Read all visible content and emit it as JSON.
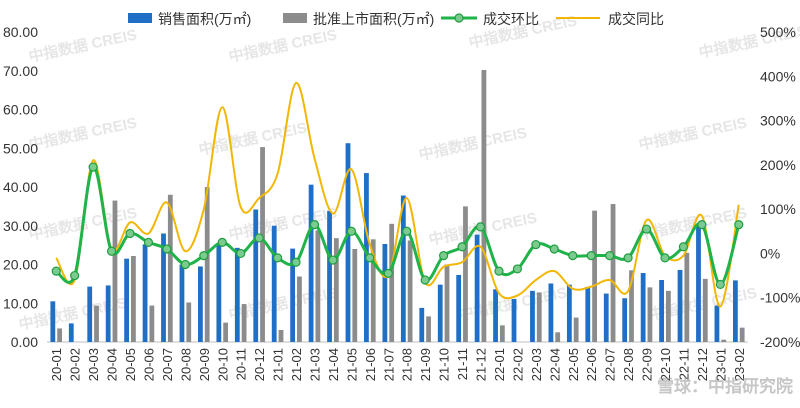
{
  "chart_data": {
    "type": "bar",
    "categories": [
      "20-01",
      "20-02",
      "20-03",
      "20-04",
      "20-05",
      "20-06",
      "20-07",
      "20-08",
      "20-09",
      "20-10",
      "20-11",
      "20-12",
      "21-01",
      "21-02",
      "21-03",
      "21-04",
      "21-05",
      "21-06",
      "21-07",
      "21-08",
      "21-09",
      "21-10",
      "21-11",
      "21-12",
      "22-01",
      "22-02",
      "22-03",
      "22-04",
      "22-05",
      "22-06",
      "22-07",
      "22-08",
      "22-09",
      "22-10",
      "22-11",
      "22-12",
      "23-01",
      "23-02"
    ],
    "left_axis": {
      "min": 0,
      "max": 80,
      "step": 10,
      "tick_labels": [
        "0.00",
        "10.00",
        "20.00",
        "30.00",
        "40.00",
        "50.00",
        "60.00",
        "70.00",
        "80.00"
      ]
    },
    "right_axis": {
      "min": -200,
      "max": 500,
      "step": 100,
      "tick_labels": [
        "-200%",
        "-100%",
        "0%",
        "100%",
        "200%",
        "300%",
        "400%",
        "500%"
      ]
    },
    "series": [
      {
        "name": "销售面积(万㎡)",
        "kind": "bar",
        "axis": "left",
        "color": "#1f6fc6",
        "values": [
          10.5,
          4.8,
          14.3,
          14.6,
          21.5,
          25.2,
          28.0,
          20.0,
          19.5,
          25.0,
          24.3,
          34.2,
          30.0,
          24.1,
          40.6,
          33.8,
          51.3,
          43.6,
          25.3,
          37.8,
          8.8,
          14.8,
          17.3,
          27.7,
          13.6,
          11.1,
          13.2,
          15.1,
          14.8,
          14.2,
          12.5,
          11.3,
          17.8,
          16.0,
          18.6,
          30.5,
          9.4,
          15.9
        ]
      },
      {
        "name": "批准上市面积(万㎡)",
        "kind": "bar",
        "axis": "left",
        "color": "#8c8c8c",
        "values": [
          3.5,
          0,
          9.4,
          36.5,
          22.2,
          9.4,
          38.0,
          10.2,
          40.0,
          5.0,
          9.8,
          50.3,
          3.1,
          16.9,
          28.8,
          26.8,
          24.0,
          26.5,
          30.5,
          26.2,
          6.6,
          20.0,
          35.0,
          70.2,
          4.3,
          0,
          12.8,
          2.5,
          6.3,
          33.9,
          35.6,
          18.5,
          14.1,
          13.2,
          23.0,
          16.3,
          0.6,
          3.7
        ]
      },
      {
        "name": "成交环比",
        "kind": "line",
        "axis": "right",
        "color": "#1fb34a",
        "values": [
          -40,
          -50,
          195,
          5,
          45,
          25,
          10,
          -25,
          -5,
          25,
          0,
          35,
          -10,
          -20,
          65,
          -15,
          50,
          -10,
          -45,
          50,
          -60,
          -5,
          15,
          60,
          -40,
          -35,
          20,
          10,
          -5,
          -5,
          -5,
          -10,
          55,
          -10,
          15,
          65,
          -70,
          65
        ]
      },
      {
        "name": "成交同比",
        "kind": "line",
        "axis": "right",
        "color": "#f2b705",
        "values": [
          -10,
          -60,
          210,
          10,
          70,
          45,
          115,
          5,
          100,
          330,
          105,
          125,
          180,
          385,
          215,
          90,
          190,
          20,
          -50,
          125,
          -65,
          -30,
          -20,
          15,
          -90,
          -95,
          -60,
          -40,
          -80,
          -75,
          -60,
          -85,
          75,
          -5,
          -5,
          85,
          -120,
          110
        ]
      }
    ],
    "legend_position": "top",
    "grid": false
  },
  "watermark": {
    "text": "中指数据  CREIS"
  },
  "corner_logo": {
    "text": "雪球：中指研究院"
  }
}
